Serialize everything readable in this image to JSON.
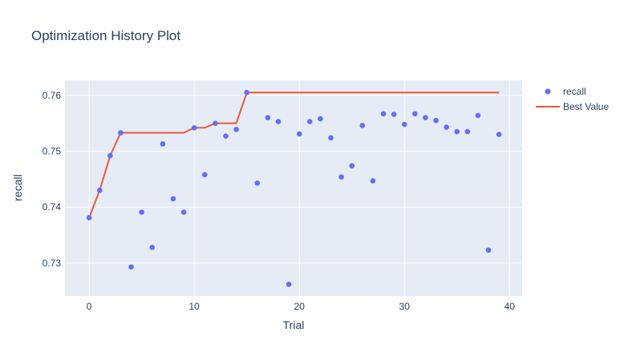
{
  "chart_data": {
    "type": "scatter",
    "title": "Optimization History Plot",
    "xlabel": "Trial",
    "ylabel": "recall",
    "xlim": [
      -2.3,
      41.2
    ],
    "ylim": [
      0.7241,
      0.7627
    ],
    "x_ticks": [
      0,
      10,
      20,
      30,
      40
    ],
    "y_ticks": [
      0.73,
      0.74,
      0.75,
      0.76
    ],
    "y_tick_labels": [
      "0.73",
      "0.74",
      "0.75",
      "0.76"
    ],
    "grid": true,
    "legend_position": "top-right",
    "colors": {
      "plot_background": "#e5ecf6",
      "grid": "#ffffff",
      "points": "#636efa",
      "best_line": "#ef553b",
      "text": "#2a3f5f"
    },
    "series": [
      {
        "name": "recall",
        "kind": "markers",
        "x": [
          0,
          1,
          2,
          3,
          4,
          5,
          6,
          7,
          8,
          9,
          10,
          11,
          12,
          13,
          14,
          15,
          16,
          17,
          18,
          19,
          20,
          21,
          22,
          23,
          24,
          25,
          26,
          27,
          28,
          29,
          30,
          31,
          32,
          33,
          34,
          35,
          36,
          37,
          38,
          39
        ],
        "y": [
          0.7381,
          0.743,
          0.7492,
          0.7533,
          0.7293,
          0.7391,
          0.7328,
          0.7513,
          0.7415,
          0.7391,
          0.7542,
          0.7458,
          0.755,
          0.7527,
          0.7539,
          0.7605,
          0.7443,
          0.756,
          0.7553,
          0.7262,
          0.7531,
          0.7553,
          0.7558,
          0.7524,
          0.7454,
          0.7474,
          0.7546,
          0.7447,
          0.7567,
          0.7566,
          0.7548,
          0.7567,
          0.756,
          0.7555,
          0.7543,
          0.7535,
          0.7535,
          0.7564,
          0.7323,
          0.753
        ]
      },
      {
        "name": "Best Value",
        "kind": "line",
        "x": [
          0,
          1,
          2,
          3,
          4,
          5,
          6,
          7,
          8,
          9,
          10,
          11,
          12,
          13,
          14,
          15,
          16,
          17,
          18,
          19,
          20,
          21,
          22,
          23,
          24,
          25,
          26,
          27,
          28,
          29,
          30,
          31,
          32,
          33,
          34,
          35,
          36,
          37,
          38,
          39
        ],
        "y": [
          0.7381,
          0.743,
          0.7492,
          0.7533,
          0.7533,
          0.7533,
          0.7533,
          0.7533,
          0.7533,
          0.7533,
          0.7542,
          0.7542,
          0.755,
          0.755,
          0.755,
          0.7605,
          0.7605,
          0.7605,
          0.7605,
          0.7605,
          0.7605,
          0.7605,
          0.7605,
          0.7605,
          0.7605,
          0.7605,
          0.7605,
          0.7605,
          0.7605,
          0.7605,
          0.7605,
          0.7605,
          0.7605,
          0.7605,
          0.7605,
          0.7605,
          0.7605,
          0.7605,
          0.7605,
          0.7605
        ]
      }
    ]
  }
}
